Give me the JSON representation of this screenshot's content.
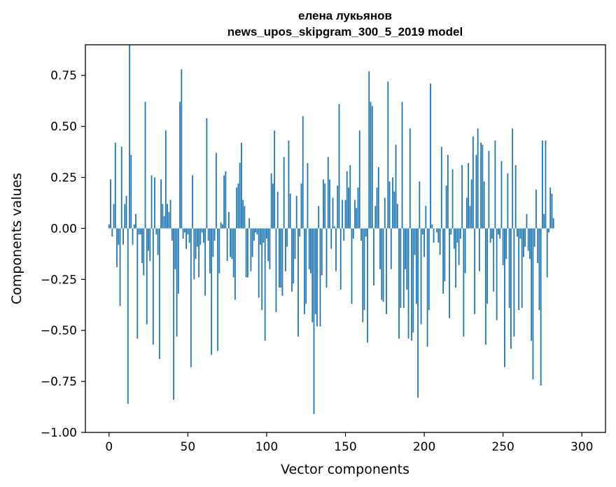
{
  "chart_data": {
    "type": "bar",
    "title": "елена лукьянов",
    "subtitle": "news_upos_skipgram_300_5_2019 model",
    "xlabel": "Vector components",
    "ylabel": "Components values",
    "xlim": [
      -15,
      315
    ],
    "ylim": [
      -1.0,
      0.9
    ],
    "xticks": [
      0,
      50,
      100,
      150,
      200,
      250,
      300
    ],
    "xtick_labels": [
      "0",
      "50",
      "100",
      "150",
      "200",
      "250",
      "300"
    ],
    "yticks": [
      -1.0,
      -0.75,
      -0.5,
      -0.25,
      0.0,
      0.25,
      0.5,
      0.75
    ],
    "ytick_labels": [
      "−1.00",
      "−0.75",
      "−0.50",
      "−0.25",
      "0.00",
      "0.25",
      "0.50",
      "0.75"
    ],
    "bar_color": "#1f77b4",
    "values": [
      0.02,
      0.24,
      -0.04,
      0.12,
      0.42,
      -0.19,
      -0.08,
      -0.38,
      0.4,
      -0.08,
      0.12,
      0.16,
      -0.86,
      0.9,
      0.36,
      -0.08,
      0.02,
      0.07,
      -0.54,
      -0.03,
      -0.03,
      -0.17,
      -0.23,
      0.62,
      -0.47,
      -0.11,
      -0.16,
      0.26,
      -0.57,
      0.25,
      -0.03,
      -0.13,
      -0.64,
      0.24,
      0.12,
      0.06,
      0.48,
      0.12,
      0.08,
      0.14,
      -0.06,
      -0.84,
      -0.2,
      -0.53,
      -0.32,
      0.62,
      0.78,
      -0.05,
      -0.02,
      -0.1,
      -0.03,
      -0.07,
      -0.68,
      0.26,
      -0.25,
      -0.15,
      -0.09,
      -0.24,
      -0.08,
      -0.02,
      -0.07,
      -0.33,
      0.54,
      -0.06,
      -0.22,
      -0.62,
      -0.14,
      -0.06,
      0.37,
      -0.6,
      -0.22,
      0.03,
      0.02,
      0.26,
      0.28,
      -0.16,
      0.08,
      -0.14,
      -0.15,
      -0.24,
      -0.35,
      0.2,
      0.22,
      0.32,
      0.42,
      0.14,
      0.11,
      -0.24,
      -0.24,
      0.05,
      -0.21,
      -0.14,
      -0.06,
      -0.02,
      -0.03,
      -0.34,
      -0.08,
      -0.4,
      -0.07,
      -0.55,
      -0.05,
      -0.16,
      -0.2,
      0.27,
      0.22,
      0.48,
      -0.41,
      0.18,
      -0.29,
      -0.29,
      -0.33,
      0.35,
      -0.21,
      -0.09,
      0.43,
      0.17,
      -0.31,
      -0.27,
      -0.15,
      0.16,
      -0.53,
      -0.04,
      0.22,
      0.55,
      -0.42,
      -0.37,
      0.32,
      -0.2,
      -0.22,
      -0.46,
      -0.91,
      -0.42,
      -0.48,
      0.11,
      -0.48,
      -0.23,
      0.24,
      0.22,
      -0.29,
      0.35,
      0.24,
      -0.1,
      0.15,
      0.01,
      -0.21,
      0.21,
      0.61,
      -0.3,
      0.14,
      -0.06,
      0.14,
      0.28,
      0.2,
      0.31,
      -0.37,
      -0.05,
      0.14,
      0.1,
      0.2,
      0.48,
      -0.06,
      -0.46,
      -0.4,
      -0.04,
      -0.56,
      0.77,
      0.62,
      0.6,
      -0.28,
      0.11,
      0.2,
      0.3,
      -0.2,
      -0.35,
      -0.36,
      0.15,
      -0.42,
      0.72,
      0.23,
      -0.2,
      0.25,
      0.18,
      0.41,
      0.12,
      -0.54,
      -0.39,
      0.62,
      -0.39,
      -0.2,
      -0.3,
      -0.54,
      0.49,
      -0.55,
      -0.51,
      -0.13,
      -0.37,
      -0.83,
      0.23,
      -0.47,
      -0.03,
      -0.14,
      0.11,
      -0.58,
      -0.4,
      0.71,
      0.02,
      -0.07,
      0.0,
      -0.02,
      -0.07,
      -0.13,
      0.4,
      -0.32,
      -0.26,
      0.21,
      0.36,
      -0.44,
      -0.03,
      0.29,
      -0.1,
      -0.29,
      -0.07,
      -0.18,
      -0.05,
      0.31,
      -0.53,
      -0.22,
      0.15,
      0.32,
      0.11,
      0.24,
      0.45,
      -0.42,
      0.36,
      0.49,
      -0.21,
      0.42,
      0.41,
      0.23,
      -0.57,
      -0.37,
      0.38,
      -0.07,
      -0.05,
      -0.31,
      0.43,
      -0.45,
      -0.03,
      -0.05,
      0.33,
      -0.18,
      -0.68,
      -0.15,
      0.27,
      -0.39,
      -0.59,
      0.49,
      -0.53,
      0.31,
      -0.04,
      -0.4,
      -0.05,
      -0.39,
      -0.14,
      -0.09,
      0.07,
      -0.11,
      -0.15,
      -0.55,
      -0.74,
      -0.09,
      0.19,
      -0.17,
      -0.4,
      -0.77,
      0.43,
      0.07,
      0.43,
      -0.24,
      -0.02,
      0.2,
      0.17,
      0.05
    ]
  }
}
